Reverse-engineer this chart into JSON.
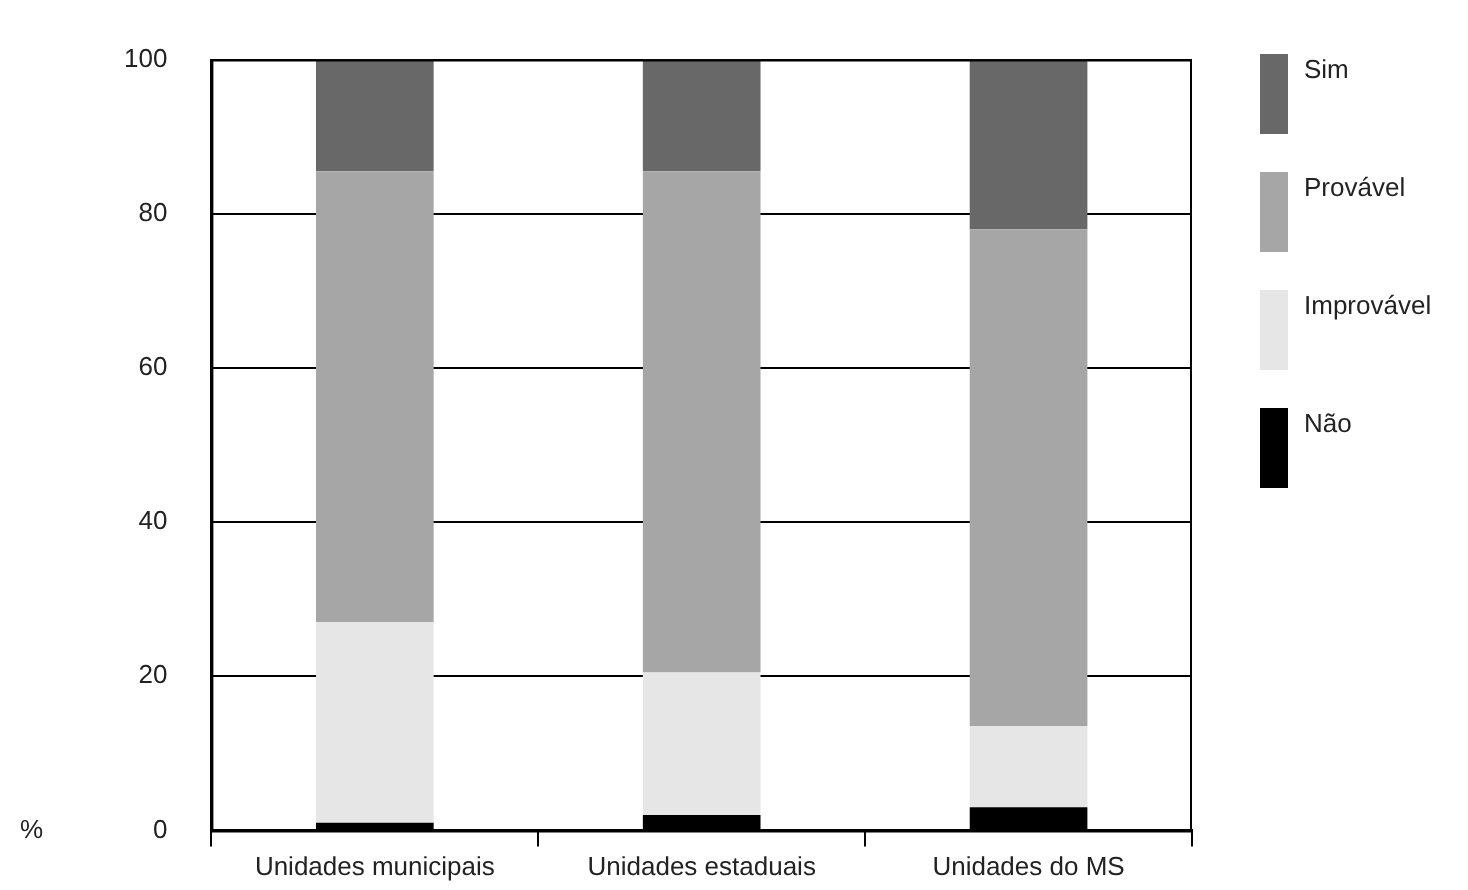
{
  "chart_data": {
    "type": "bar",
    "stacked": true,
    "ylabel": "%",
    "categories": [
      "Unidades municipais",
      "Unidades estaduais",
      "Unidades do MS"
    ],
    "series": [
      {
        "name": "Não",
        "color": "#000000",
        "values": [
          1,
          2,
          3
        ]
      },
      {
        "name": "Improvável",
        "color": "#e6e6e6",
        "values": [
          26,
          18.5,
          10.5
        ]
      },
      {
        "name": "Provável",
        "color": "#a6a6a6",
        "values": [
          58.5,
          65,
          64.5
        ]
      },
      {
        "name": "Sim",
        "color": "#686868",
        "values": [
          14.5,
          14.5,
          22
        ]
      }
    ],
    "ylim": [
      0,
      100
    ],
    "yticks": [
      0,
      20,
      40,
      60,
      80,
      100
    ],
    "grid": "y",
    "legend": "right"
  }
}
